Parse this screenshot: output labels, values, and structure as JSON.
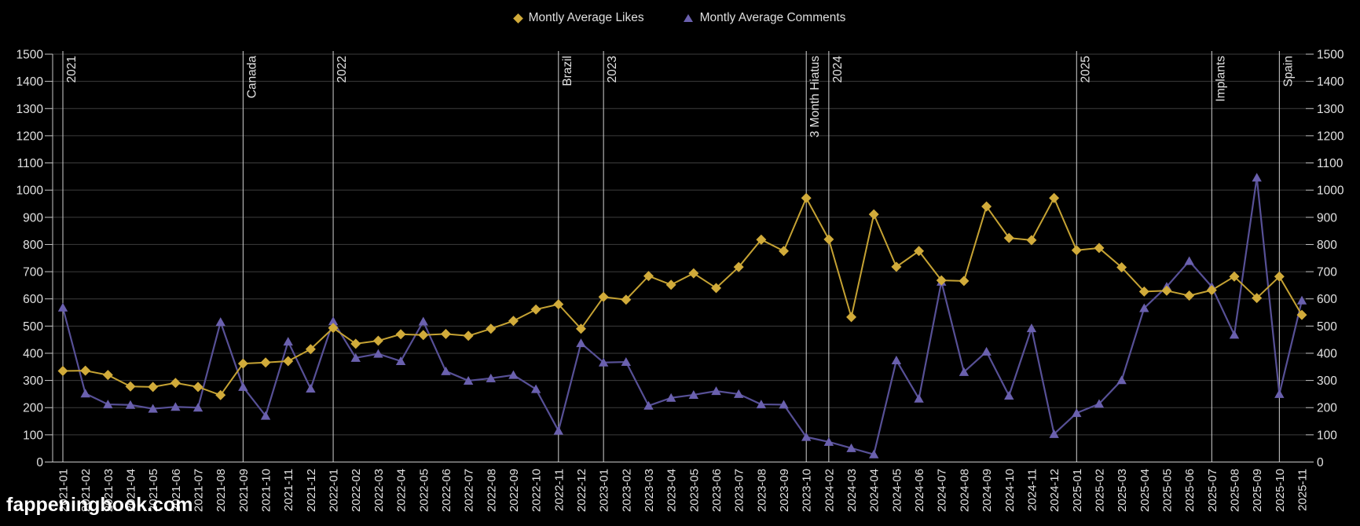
{
  "page": {
    "background": "#000000",
    "watermark": "fappeningbook.com"
  },
  "legend": {
    "items": [
      {
        "label": "Montly Average Likes",
        "marker": "diamond-icon",
        "color": "#d1ab3a"
      },
      {
        "label": "Montly Average Comments",
        "marker": "triangle-icon",
        "color": "#6a60ae"
      }
    ]
  },
  "colors": {
    "grid": "#3d3d3d",
    "axis": "#c9c9c9",
    "annotation_line": "#d2d2d2",
    "text": "#e2e2e2",
    "likes_line": "#c5a233",
    "likes_marker": "#d1ab3a",
    "comments_line": "#575096",
    "comments_marker": "#6a60ae"
  },
  "chart_data": {
    "type": "line",
    "title": "",
    "xlabel": "",
    "ylabel": "",
    "ylim": [
      0,
      1500
    ],
    "y_ticks": [
      0,
      100,
      200,
      300,
      400,
      500,
      600,
      700,
      800,
      900,
      1000,
      1100,
      1200,
      1300,
      1400,
      1500
    ],
    "y_axis_sides": "both",
    "grid": "horizontal",
    "legend_position": "top-center",
    "x_label_rotation": -90,
    "categories": [
      "2021-01",
      "2021-02",
      "2021-03",
      "2021-04",
      "2021-05",
      "2021-06",
      "2021-07",
      "2021-08",
      "2021-09",
      "2021-10",
      "2021-11",
      "2021-12",
      "2022-01",
      "2022-02",
      "2022-03",
      "2022-04",
      "2022-05",
      "2022-06",
      "2022-07",
      "2022-08",
      "2022-09",
      "2022-10",
      "2022-11",
      "2022-12",
      "2023-01",
      "2023-02",
      "2023-03",
      "2023-04",
      "2023-05",
      "2023-06",
      "2023-07",
      "2023-08",
      "2023-09",
      "2023-10",
      "2024-02",
      "2024-03",
      "2024-04",
      "2024-05",
      "2024-06",
      "2024-07",
      "2024-08",
      "2024-09",
      "2024-10",
      "2024-11",
      "2024-12",
      "2025-01",
      "2025-02",
      "2025-03",
      "2025-04",
      "2025-05",
      "2025-06",
      "2025-07",
      "2025-08",
      "2025-09",
      "2025-10",
      "2025-11"
    ],
    "series": [
      {
        "name": "Montly Average Likes",
        "marker": "diamond",
        "values": [
          335,
          336,
          320,
          278,
          276,
          291,
          276,
          246,
          362,
          366,
          371,
          415,
          493,
          435,
          446,
          470,
          467,
          471,
          464,
          490,
          519,
          561,
          580,
          490,
          607,
          597,
          684,
          652,
          694,
          640,
          717,
          818,
          776,
          971,
          819,
          533,
          911,
          718,
          776,
          668,
          666,
          940,
          824,
          816,
          971,
          779,
          787,
          716,
          627,
          630,
          612,
          632,
          682,
          603,
          682,
          541
        ]
      },
      {
        "name": "Montly Average Comments",
        "marker": "triangle-up",
        "values": [
          568,
          252,
          212,
          210,
          196,
          203,
          200,
          515,
          276,
          170,
          443,
          270,
          518,
          383,
          398,
          371,
          517,
          334,
          299,
          308,
          320,
          268,
          115,
          437,
          366,
          368,
          207,
          236,
          247,
          261,
          250,
          212,
          211,
          92,
          74,
          51,
          28,
          374,
          233,
          663,
          331,
          406,
          244,
          492,
          103,
          180,
          214,
          301,
          566,
          645,
          739,
          645,
          468,
          1046,
          250,
          594
        ]
      }
    ],
    "annotations": [
      {
        "label": "2021",
        "category": "2021-01"
      },
      {
        "label": "Canada",
        "category": "2021-09"
      },
      {
        "label": "2022",
        "category": "2022-01"
      },
      {
        "label": "Brazil",
        "category": "2022-11"
      },
      {
        "label": "2023",
        "category": "2023-01"
      },
      {
        "label": "3 Month Hiatus",
        "category": "2023-10"
      },
      {
        "label": "2024",
        "category": "2024-02"
      },
      {
        "label": "2025",
        "category": "2025-01"
      },
      {
        "label": "Implants",
        "category": "2025-07"
      },
      {
        "label": "Spain",
        "category": "2025-10"
      }
    ]
  }
}
